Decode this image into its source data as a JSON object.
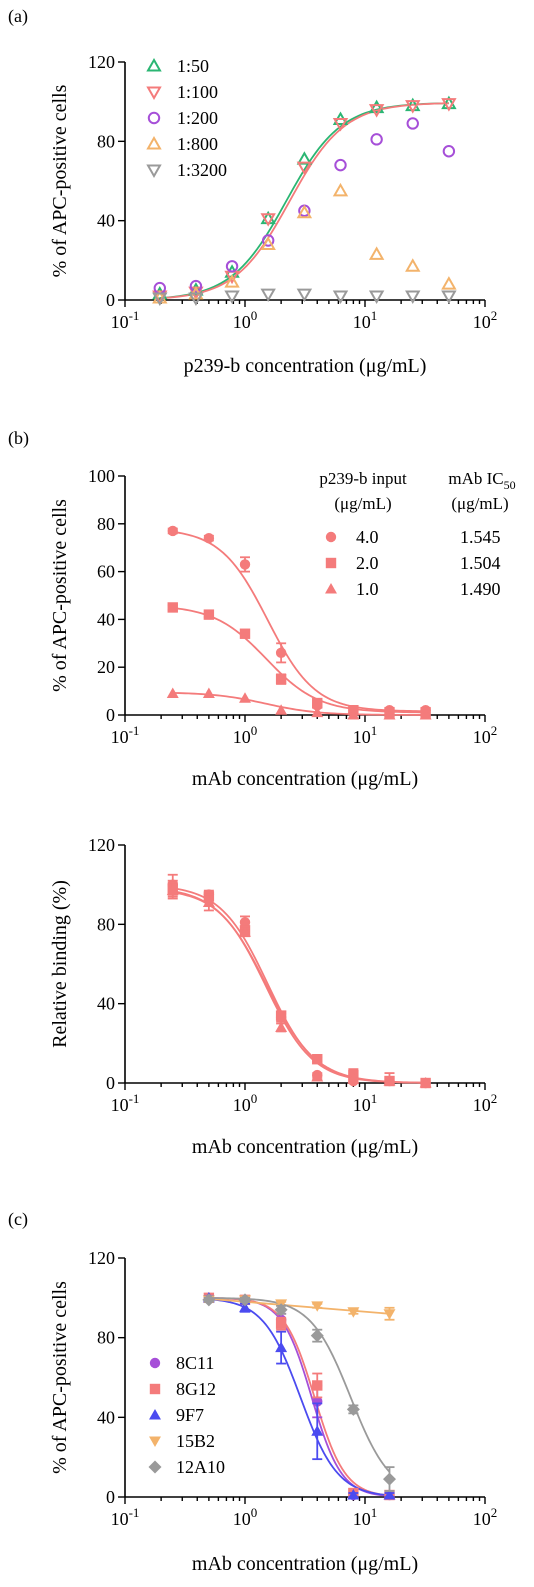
{
  "panels": [
    {
      "id": "a",
      "panel_label": "(a)",
      "chart_data": {
        "type": "scatter",
        "title": "",
        "xlabel": "p239-b concentration (μg/mL)",
        "ylabel": "% of APC-positive cells",
        "x_scale": "log",
        "xlim": [
          0.1,
          100
        ],
        "ylim": [
          0,
          120
        ],
        "x_tick_labels": [
          {
            "base": "10",
            "exp": "-1"
          },
          {
            "base": "10",
            "exp": "0"
          },
          {
            "base": "10",
            "exp": "1"
          },
          {
            "base": "10",
            "exp": "2"
          }
        ],
        "y_tick_labels": [
          "0",
          "40",
          "80",
          "120"
        ],
        "y_ticks": [
          0,
          40,
          80,
          120
        ],
        "grid": false,
        "legend_position": "top-left",
        "series": [
          {
            "name": "1:50",
            "color": "#2bb673",
            "marker": "triangle-up-open",
            "x": [
              0.195,
              0.39,
              0.78,
              1.56,
              3.125,
              6.25,
              12.5,
              25,
              50
            ],
            "y": [
              3,
              5,
              14,
              41,
              71,
              91,
              97,
              98,
              99
            ]
          },
          {
            "name": "1:100",
            "color": "#f47b7b",
            "marker": "triangle-down-open",
            "x": [
              0.195,
              0.39,
              0.78,
              1.56,
              3.125,
              6.25,
              12.5,
              25,
              50
            ],
            "y": [
              2,
              4,
              12,
              41,
              67,
              89,
              96,
              98,
              99
            ]
          },
          {
            "name": "1:200",
            "color": "#a64fd8",
            "marker": "circle-open",
            "x": [
              0.195,
              0.39,
              0.78,
              1.56,
              3.125,
              6.25,
              12.5,
              25,
              50
            ],
            "y": [
              6,
              7,
              17,
              30,
              45,
              68,
              81,
              89,
              75
            ]
          },
          {
            "name": "1:800",
            "color": "#f3b36b",
            "marker": "triangle-up-open",
            "x": [
              0.195,
              0.39,
              0.78,
              1.56,
              3.125,
              6.25,
              12.5,
              25,
              50
            ],
            "y": [
              1,
              3,
              9,
              28,
              44,
              55,
              23,
              17,
              8
            ]
          },
          {
            "name": "1:3200",
            "color": "#9a9a9a",
            "marker": "triangle-down-open",
            "x": [
              0.195,
              0.39,
              0.78,
              1.56,
              3.125,
              6.25,
              12.5,
              25,
              50
            ],
            "y": [
              1,
              1,
              2,
              3,
              3,
              2,
              2,
              2,
              2
            ]
          }
        ],
        "fit_curves": [
          {
            "color": "#2bb673",
            "bottom": 0,
            "top": 99.5,
            "ec50": 2.2,
            "hill": 1.9
          },
          {
            "color": "#f47b7b",
            "bottom": 0,
            "top": 99.5,
            "ec50": 2.35,
            "hill": 1.9
          }
        ]
      }
    },
    {
      "id": "b1",
      "panel_label": "(b)",
      "legend_header_left": [
        "p239-b input",
        "(μg/mL)"
      ],
      "legend_header_right": {
        "line1_prefix": "mAb IC",
        "line1_sub": "50",
        "line2": "(μg/mL)"
      },
      "chart_data": {
        "type": "scatter",
        "title": "",
        "xlabel": "mAb concentration (μg/mL)",
        "ylabel": "% of APC-positive cells",
        "x_scale": "log",
        "xlim": [
          0.1,
          100
        ],
        "ylim": [
          0,
          100
        ],
        "x_tick_labels": [
          {
            "base": "10",
            "exp": "-1"
          },
          {
            "base": "10",
            "exp": "0"
          },
          {
            "base": "10",
            "exp": "1"
          },
          {
            "base": "10",
            "exp": "2"
          }
        ],
        "y_tick_labels": [
          "0",
          "20",
          "40",
          "60",
          "80",
          "100"
        ],
        "y_ticks": [
          0,
          20,
          40,
          60,
          80,
          100
        ],
        "grid": false,
        "legend_position": "top-right",
        "series": [
          {
            "name": "4.0",
            "ic50": "1.545",
            "color": "#f47b7b",
            "marker": "circle",
            "x": [
              0.25,
              0.5,
              1,
              2,
              4,
              8,
              16,
              32
            ],
            "y": [
              77,
              74,
              63,
              26,
              4,
              2,
              2,
              2
            ],
            "err": [
              1,
              1,
              3,
              4,
              1,
              1,
              1,
              1
            ]
          },
          {
            "name": "2.0",
            "ic50": "1.504",
            "color": "#f47b7b",
            "marker": "square",
            "x": [
              0.25,
              0.5,
              1,
              2,
              4,
              8,
              16,
              32
            ],
            "y": [
              45,
              42,
              34,
              15,
              5,
              2,
              1,
              1
            ],
            "err": [
              1,
              1,
              1,
              2,
              1,
              1,
              1,
              1
            ]
          },
          {
            "name": "1.0",
            "ic50": "1.490",
            "color": "#f47b7b",
            "marker": "triangle-up",
            "x": [
              0.25,
              0.5,
              1,
              2,
              4,
              8,
              16,
              32
            ],
            "y": [
              9,
              9,
              7,
              2,
              1,
              0,
              0,
              0
            ],
            "err": [
              0,
              0,
              0,
              0,
              0,
              0,
              0,
              0
            ]
          }
        ],
        "fit_curves": [
          {
            "color": "#f47b7b",
            "bottom": 1.5,
            "top": 78,
            "ec50": 1.545,
            "hill": -2.2
          },
          {
            "color": "#f47b7b",
            "bottom": 1,
            "top": 46,
            "ec50": 1.504,
            "hill": -2.0
          },
          {
            "color": "#f47b7b",
            "bottom": 0,
            "top": 9.5,
            "ec50": 1.49,
            "hill": -2.0
          }
        ]
      }
    },
    {
      "id": "b2",
      "panel_label": "",
      "chart_data": {
        "type": "scatter",
        "title": "",
        "xlabel": "mAb concentration (μg/mL)",
        "ylabel": "Relative binding (%)",
        "x_scale": "log",
        "xlim": [
          0.1,
          100
        ],
        "ylim": [
          0,
          120
        ],
        "x_tick_labels": [
          {
            "base": "10",
            "exp": "-1"
          },
          {
            "base": "10",
            "exp": "0"
          },
          {
            "base": "10",
            "exp": "1"
          },
          {
            "base": "10",
            "exp": "2"
          }
        ],
        "y_tick_labels": [
          "0",
          "40",
          "80",
          "120"
        ],
        "y_ticks": [
          0,
          40,
          80,
          120
        ],
        "grid": false,
        "legend_position": "none",
        "series": [
          {
            "color": "#f47b7b",
            "marker": "circle",
            "x": [
              0.25,
              0.5,
              1,
              2,
              4,
              8,
              16,
              32
            ],
            "y": [
              100,
              95,
              81,
              33,
              4,
              1,
              1,
              0
            ],
            "err": [
              5,
              2,
              3,
              2,
              1,
              1,
              1,
              0
            ]
          },
          {
            "color": "#f47b7b",
            "marker": "square",
            "x": [
              0.25,
              0.5,
              1,
              2,
              4,
              8,
              16,
              32
            ],
            "y": [
              98,
              94,
              77,
              34,
              12,
              4,
              1,
              0
            ],
            "err": [
              4,
              2,
              2,
              2,
              1,
              3,
              4,
              0
            ]
          },
          {
            "color": "#f47b7b",
            "marker": "triangle-up",
            "x": [
              0.25,
              0.5,
              1,
              2,
              4,
              8,
              16,
              32
            ],
            "y": [
              97,
              91,
              76,
              28,
              3,
              2,
              1,
              0
            ],
            "err": [
              4,
              4,
              2,
              2,
              1,
              1,
              1,
              0
            ]
          }
        ],
        "fit_curves": [
          {
            "color": "#f47b7b",
            "bottom": 0,
            "top": 100,
            "ec50": 1.545,
            "hill": -2.2
          },
          {
            "color": "#f47b7b",
            "bottom": 0,
            "top": 99,
            "ec50": 1.504,
            "hill": -2.1
          },
          {
            "color": "#f47b7b",
            "bottom": 0,
            "top": 98,
            "ec50": 1.49,
            "hill": -2.2
          }
        ]
      }
    },
    {
      "id": "c",
      "panel_label": "(c)",
      "chart_data": {
        "type": "scatter",
        "title": "",
        "xlabel": "mAb concentration (μg/mL)",
        "ylabel": "% of APC-positive cells",
        "x_scale": "log",
        "xlim": [
          0.1,
          100
        ],
        "ylim": [
          0,
          120
        ],
        "x_tick_labels": [
          {
            "base": "10",
            "exp": "-1"
          },
          {
            "base": "10",
            "exp": "0"
          },
          {
            "base": "10",
            "exp": "1"
          },
          {
            "base": "10",
            "exp": "2"
          }
        ],
        "y_tick_labels": [
          "0",
          "40",
          "80",
          "120"
        ],
        "y_ticks": [
          0,
          40,
          80,
          120
        ],
        "grid": false,
        "legend_position": "bottom-left",
        "series": [
          {
            "name": "8C11",
            "color": "#a64fd8",
            "marker": "circle",
            "x": [
              0.5,
              1,
              2,
              4,
              8,
              16
            ],
            "y": [
              100,
              99,
              89,
              48,
              1,
              1
            ],
            "err": [
              1,
              1,
              3,
              8,
              1,
              1
            ]
          },
          {
            "name": "8G12",
            "color": "#f47b7b",
            "marker": "square",
            "x": [
              0.5,
              1,
              2,
              4,
              8,
              16
            ],
            "y": [
              100,
              99,
              87,
              56,
              2,
              1
            ],
            "err": [
              1,
              1,
              3,
              6,
              1,
              1
            ]
          },
          {
            "name": "9F7",
            "color": "#4b4bf0",
            "marker": "triangle-up",
            "x": [
              0.5,
              1,
              2,
              4,
              8,
              16
            ],
            "y": [
              100,
              95,
              75,
              33,
              1,
              1
            ],
            "err": [
              1,
              2,
              8,
              14,
              1,
              1
            ]
          },
          {
            "name": "15B2",
            "color": "#f3b36b",
            "marker": "triangle-down",
            "x": [
              0.5,
              1,
              2,
              4,
              8,
              16
            ],
            "y": [
              99,
              99,
              97,
              96,
              93,
              92
            ],
            "err": [
              1,
              1,
              1,
              1,
              1,
              3
            ]
          },
          {
            "name": "12A10",
            "color": "#9a9a9a",
            "marker": "diamond",
            "x": [
              0.5,
              1,
              2,
              4,
              8,
              16
            ],
            "y": [
              99,
              99,
              94,
              81,
              44,
              9
            ],
            "err": [
              1,
              1,
              2,
              3,
              2,
              6
            ]
          }
        ],
        "fit_curves": [
          {
            "color": "#a64fd8",
            "bottom": 0,
            "top": 100,
            "ec50": 3.6,
            "hill": -3.5
          },
          {
            "color": "#f47b7b",
            "bottom": 0,
            "top": 100,
            "ec50": 3.8,
            "hill": -3.4
          },
          {
            "color": "#4b4bf0",
            "bottom": 0,
            "top": 100,
            "ec50": 2.9,
            "hill": -2.8
          },
          {
            "color": "#f3b36b",
            "type": "linear",
            "points": [
              [
                0.5,
                99.5
              ],
              [
                16,
                92
              ]
            ]
          },
          {
            "color": "#9a9a9a",
            "bottom": 0,
            "top": 100,
            "ec50": 7.6,
            "hill": -2.6
          }
        ]
      }
    }
  ]
}
